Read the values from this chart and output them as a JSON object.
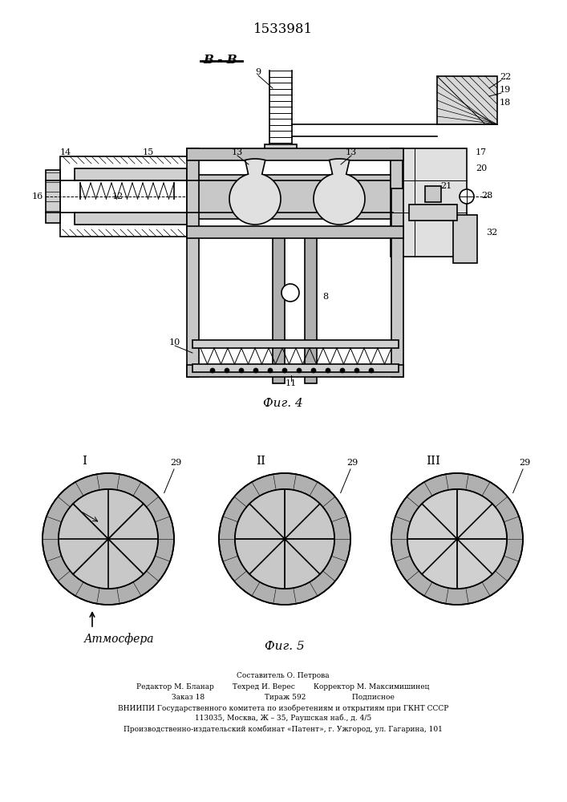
{
  "patent_number": "1533981",
  "section_label": "B - B",
  "fig4_label": "Фиг. 4",
  "fig5_label": "Фиг. 5",
  "atmosphere_label": "Атмосфера",
  "footer_lines": [
    "Составитель О. Петрова",
    "Редактор М. Бланар        Техред И. Верес        Корректор М. Максимишинец",
    "Заказ 18                          Тираж 592                    Подписное",
    "ВНИИПИ Государственного комитета по изобретениям и открытиям при ГКНТ СССР",
    "113035, Москва, Ж – 35, Раушская наб., д. 4/5",
    "Производственно-издательский комбинат «Патент», г. Ужгород, ул. Гагарина, 101"
  ],
  "bg_color": "#ffffff",
  "drawing_color": "#000000"
}
